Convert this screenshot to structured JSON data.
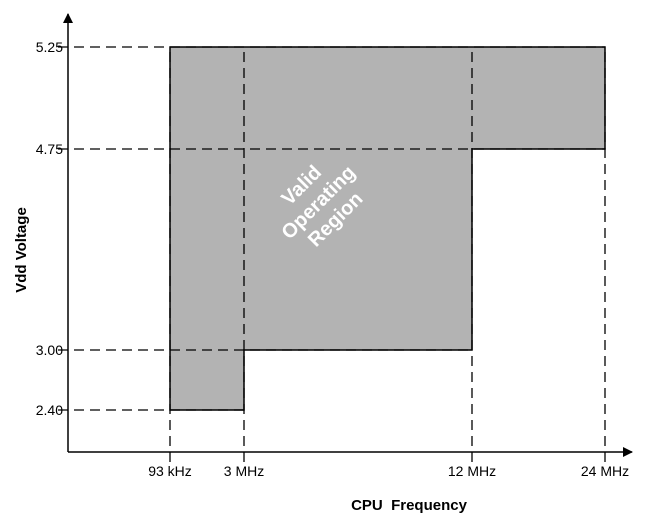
{
  "chart_data": {
    "type": "area",
    "title": "",
    "xlabel": "CPU  Frequency",
    "ylabel": "Vdd Voltage",
    "x_ticks": [
      "93 kHz",
      "3 MHz",
      "12 MHz",
      "24 MHz"
    ],
    "y_ticks": [
      "5.25",
      "4.75",
      "3.00",
      "2.40"
    ],
    "region": {
      "name_lines": [
        "Valid",
        "Operating",
        "Region"
      ],
      "fill": "#b3b3b3",
      "segments": [
        {
          "x_from": "93 kHz",
          "x_to": "3 MHz",
          "y_min": "2.40",
          "y_max": "5.25"
        },
        {
          "x_from": "3 MHz",
          "x_to": "12 MHz",
          "y_min": "3.00",
          "y_max": "5.25"
        },
        {
          "x_from": "12 MHz",
          "x_to": "24 MHz",
          "y_min": "4.75",
          "y_max": "5.25"
        }
      ]
    },
    "grid": false,
    "guide_lines": "dashed"
  }
}
